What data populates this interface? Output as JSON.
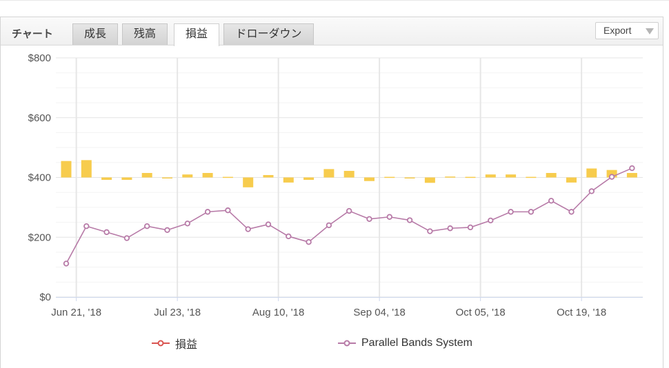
{
  "toolbar": {
    "chart_label": "チャート",
    "tabs": [
      {
        "label": "成長",
        "active": false
      },
      {
        "label": "残高",
        "active": false
      },
      {
        "label": "損益",
        "active": true
      },
      {
        "label": "ドローダウン",
        "active": false
      }
    ],
    "export_label": "Export"
  },
  "colors": {
    "bars": "#f7cc4d",
    "line": "#b77aa7",
    "legend_profit": "#d9534f"
  },
  "chart_data": {
    "type": "bar",
    "title": "",
    "xlabel": "",
    "ylabel": "",
    "ylim": [
      0,
      800
    ],
    "yticks": [
      "$0",
      "$200",
      "$400",
      "$600",
      "$800"
    ],
    "y_tick_values": [
      0,
      200,
      400,
      600,
      800
    ],
    "x_tick_labels": [
      "Jun 21, '18",
      "Jul 23, '18",
      "Aug 10, '18",
      "Sep 04, '18",
      "Oct 05, '18",
      "Oct 19, '18"
    ],
    "x_tick_index": [
      0.5,
      5.5,
      10.5,
      15.5,
      20.5,
      25.5
    ],
    "grid": true,
    "legend_position": "bottom",
    "series": [
      {
        "name": "損益",
        "type": "bar",
        "baseline": 400,
        "values": [
          455,
          458,
          392,
          392,
          415,
          397,
          410,
          415,
          402,
          367,
          408,
          383,
          392,
          428,
          422,
          388,
          402,
          397,
          382,
          403,
          402,
          410,
          410,
          402,
          415,
          383,
          430,
          425,
          415
        ]
      },
      {
        "name": "Parallel Bands System",
        "type": "line",
        "values": [
          112,
          237,
          217,
          197,
          237,
          224,
          246,
          285,
          290,
          227,
          243,
          203,
          184,
          240,
          288,
          261,
          268,
          257,
          220,
          230,
          233,
          256,
          285,
          285,
          322,
          285,
          354,
          402,
          431
        ]
      }
    ]
  }
}
